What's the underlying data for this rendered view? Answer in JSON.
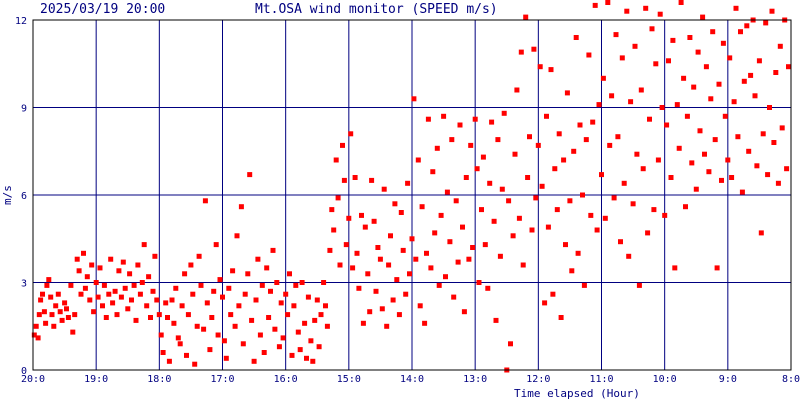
{
  "header": {
    "timestamp": "2025/03/19 20:00",
    "title": "Mt.OSA wind monitor (SPEED m/s)"
  },
  "colors": {
    "background": "#ffffff",
    "plot_border": "#000000",
    "grid": "#000080",
    "text": "#000080",
    "points": "#ff0000"
  },
  "chart_data": {
    "type": "scatter",
    "title": "Mt.OSA wind monitor (SPEED m/s)",
    "xlabel": "Time elapsed (Hour)",
    "ylabel": "m/s",
    "xlim": [
      0,
      12
    ],
    "ylim": [
      0,
      12
    ],
    "x_reversed": true,
    "grid": true,
    "x_ticks": [
      {
        "value": 0,
        "label": "20:0"
      },
      {
        "value": 1,
        "label": "19:0"
      },
      {
        "value": 2,
        "label": "18:0"
      },
      {
        "value": 3,
        "label": "17:0"
      },
      {
        "value": 4,
        "label": "16:0"
      },
      {
        "value": 5,
        "label": "15:0"
      },
      {
        "value": 6,
        "label": "14:0"
      },
      {
        "value": 7,
        "label": "13:0"
      },
      {
        "value": 8,
        "label": "12:0"
      },
      {
        "value": 9,
        "label": "11:0"
      },
      {
        "value": 10,
        "label": "10:0"
      },
      {
        "value": 11,
        "label": "9:0"
      },
      {
        "value": 12,
        "label": "8:0"
      }
    ],
    "y_ticks": [
      {
        "value": 0,
        "label": "0"
      },
      {
        "value": 3,
        "label": "3"
      },
      {
        "value": 6,
        "label": "6"
      },
      {
        "value": 9,
        "label": "9"
      },
      {
        "value": 12,
        "label": "12"
      }
    ],
    "points": [
      [
        0.02,
        1.2
      ],
      [
        0.05,
        1.5
      ],
      [
        0.08,
        1.1
      ],
      [
        0.1,
        1.9
      ],
      [
        0.12,
        2.4
      ],
      [
        0.15,
        2.6
      ],
      [
        0.18,
        2.0
      ],
      [
        0.2,
        1.6
      ],
      [
        0.22,
        2.9
      ],
      [
        0.25,
        3.1
      ],
      [
        0.28,
        2.5
      ],
      [
        0.3,
        1.9
      ],
      [
        0.33,
        1.5
      ],
      [
        0.36,
        2.2
      ],
      [
        0.4,
        2.6
      ],
      [
        0.43,
        2.0
      ],
      [
        0.46,
        1.7
      ],
      [
        0.5,
        2.3
      ],
      [
        0.53,
        2.1
      ],
      [
        0.56,
        1.8
      ],
      [
        0.6,
        2.9
      ],
      [
        0.63,
        1.3
      ],
      [
        0.66,
        1.9
      ],
      [
        0.7,
        3.8
      ],
      [
        0.73,
        3.4
      ],
      [
        0.76,
        2.6
      ],
      [
        0.8,
        4.0
      ],
      [
        0.83,
        2.8
      ],
      [
        0.86,
        3.2
      ],
      [
        0.9,
        2.4
      ],
      [
        0.93,
        3.6
      ],
      [
        0.96,
        2.0
      ],
      [
        1.0,
        3.0
      ],
      [
        1.03,
        2.5
      ],
      [
        1.06,
        3.5
      ],
      [
        1.1,
        2.2
      ],
      [
        1.13,
        2.9
      ],
      [
        1.16,
        1.8
      ],
      [
        1.2,
        2.6
      ],
      [
        1.23,
        3.8
      ],
      [
        1.26,
        2.3
      ],
      [
        1.3,
        2.7
      ],
      [
        1.33,
        1.9
      ],
      [
        1.36,
        3.4
      ],
      [
        1.4,
        2.5
      ],
      [
        1.43,
        3.7
      ],
      [
        1.46,
        2.8
      ],
      [
        1.5,
        2.1
      ],
      [
        1.53,
        3.3
      ],
      [
        1.56,
        2.4
      ],
      [
        1.6,
        2.9
      ],
      [
        1.63,
        1.7
      ],
      [
        1.66,
        3.6
      ],
      [
        1.7,
        2.6
      ],
      [
        1.73,
        3.0
      ],
      [
        1.76,
        4.3
      ],
      [
        1.8,
        2.2
      ],
      [
        1.83,
        3.2
      ],
      [
        1.86,
        1.8
      ],
      [
        1.9,
        2.7
      ],
      [
        1.93,
        3.9
      ],
      [
        1.96,
        2.4
      ],
      [
        2.0,
        1.9
      ],
      [
        2.03,
        1.2
      ],
      [
        2.06,
        0.6
      ],
      [
        2.1,
        2.3
      ],
      [
        2.13,
        1.8
      ],
      [
        2.16,
        0.3
      ],
      [
        2.2,
        2.4
      ],
      [
        2.23,
        1.6
      ],
      [
        2.26,
        2.8
      ],
      [
        2.3,
        1.1
      ],
      [
        2.33,
        0.9
      ],
      [
        2.36,
        2.2
      ],
      [
        2.4,
        3.3
      ],
      [
        2.43,
        0.5
      ],
      [
        2.46,
        1.9
      ],
      [
        2.5,
        3.6
      ],
      [
        2.53,
        2.6
      ],
      [
        2.56,
        0.2
      ],
      [
        2.6,
        1.5
      ],
      [
        2.63,
        3.9
      ],
      [
        2.66,
        2.9
      ],
      [
        2.7,
        1.4
      ],
      [
        2.73,
        5.8
      ],
      [
        2.76,
        2.3
      ],
      [
        2.8,
        0.7
      ],
      [
        2.83,
        1.8
      ],
      [
        2.86,
        2.7
      ],
      [
        2.9,
        4.3
      ],
      [
        2.93,
        1.2
      ],
      [
        2.96,
        3.1
      ],
      [
        3.0,
        2.5
      ],
      [
        3.03,
        1.0
      ],
      [
        3.06,
        0.4
      ],
      [
        3.1,
        2.8
      ],
      [
        3.13,
        1.9
      ],
      [
        3.16,
        3.4
      ],
      [
        3.2,
        1.5
      ],
      [
        3.23,
        4.6
      ],
      [
        3.26,
        2.2
      ],
      [
        3.3,
        5.6
      ],
      [
        3.33,
        0.9
      ],
      [
        3.36,
        2.6
      ],
      [
        3.4,
        3.3
      ],
      [
        3.43,
        6.7
      ],
      [
        3.46,
        1.7
      ],
      [
        3.5,
        0.3
      ],
      [
        3.53,
        2.4
      ],
      [
        3.56,
        3.8
      ],
      [
        3.6,
        1.2
      ],
      [
        3.63,
        2.9
      ],
      [
        3.66,
        0.6
      ],
      [
        3.7,
        3.5
      ],
      [
        3.73,
        1.8
      ],
      [
        3.76,
        2.7
      ],
      [
        3.8,
        4.1
      ],
      [
        3.83,
        1.4
      ],
      [
        3.86,
        3.0
      ],
      [
        3.9,
        0.8
      ],
      [
        3.93,
        2.3
      ],
      [
        3.96,
        1.1
      ],
      [
        4.0,
        2.6
      ],
      [
        4.03,
        1.9
      ],
      [
        4.06,
        3.3
      ],
      [
        4.1,
        0.5
      ],
      [
        4.13,
        2.2
      ],
      [
        4.16,
        2.9
      ],
      [
        4.2,
        1.3
      ],
      [
        4.23,
        0.7
      ],
      [
        4.26,
        3.0
      ],
      [
        4.3,
        1.6
      ],
      [
        4.33,
        0.4
      ],
      [
        4.36,
        2.5
      ],
      [
        4.4,
        1.0
      ],
      [
        4.43,
        0.3
      ],
      [
        4.46,
        1.7
      ],
      [
        4.5,
        2.4
      ],
      [
        4.53,
        0.8
      ],
      [
        4.56,
        1.9
      ],
      [
        4.6,
        3.0
      ],
      [
        4.63,
        2.2
      ],
      [
        4.66,
        1.5
      ],
      [
        4.7,
        4.1
      ],
      [
        4.73,
        5.5
      ],
      [
        4.76,
        4.8
      ],
      [
        4.8,
        7.2
      ],
      [
        4.83,
        5.9
      ],
      [
        4.86,
        3.6
      ],
      [
        4.9,
        7.7
      ],
      [
        4.93,
        6.5
      ],
      [
        4.96,
        4.3
      ],
      [
        5.0,
        5.2
      ],
      [
        5.03,
        8.1
      ],
      [
        5.06,
        3.5
      ],
      [
        5.1,
        6.6
      ],
      [
        5.13,
        4.0
      ],
      [
        5.16,
        2.8
      ],
      [
        5.2,
        5.3
      ],
      [
        5.23,
        1.6
      ],
      [
        5.26,
        4.9
      ],
      [
        5.3,
        3.3
      ],
      [
        5.33,
        2.0
      ],
      [
        5.36,
        6.5
      ],
      [
        5.4,
        5.1
      ],
      [
        5.43,
        2.7
      ],
      [
        5.46,
        4.2
      ],
      [
        5.5,
        3.8
      ],
      [
        5.53,
        2.1
      ],
      [
        5.56,
        6.2
      ],
      [
        5.6,
        1.5
      ],
      [
        5.63,
        3.6
      ],
      [
        5.66,
        4.6
      ],
      [
        5.7,
        2.4
      ],
      [
        5.73,
        5.7
      ],
      [
        5.76,
        3.1
      ],
      [
        5.8,
        1.9
      ],
      [
        5.83,
        5.4
      ],
      [
        5.86,
        4.1
      ],
      [
        5.9,
        2.6
      ],
      [
        5.93,
        6.4
      ],
      [
        5.96,
        3.3
      ],
      [
        6.0,
        4.5
      ],
      [
        6.03,
        9.3
      ],
      [
        6.06,
        3.8
      ],
      [
        6.1,
        7.2
      ],
      [
        6.13,
        2.2
      ],
      [
        6.16,
        5.6
      ],
      [
        6.2,
        1.6
      ],
      [
        6.23,
        4.0
      ],
      [
        6.26,
        8.6
      ],
      [
        6.3,
        3.5
      ],
      [
        6.33,
        6.8
      ],
      [
        6.36,
        4.7
      ],
      [
        6.4,
        7.6
      ],
      [
        6.43,
        2.9
      ],
      [
        6.46,
        5.3
      ],
      [
        6.5,
        8.7
      ],
      [
        6.53,
        3.2
      ],
      [
        6.56,
        6.1
      ],
      [
        6.6,
        4.4
      ],
      [
        6.63,
        7.9
      ],
      [
        6.66,
        2.5
      ],
      [
        6.7,
        5.8
      ],
      [
        6.73,
        3.7
      ],
      [
        6.76,
        8.4
      ],
      [
        6.8,
        4.9
      ],
      [
        6.83,
        2.0
      ],
      [
        6.86,
        6.6
      ],
      [
        6.9,
        3.8
      ],
      [
        6.93,
        7.7
      ],
      [
        6.96,
        4.2
      ],
      [
        7.0,
        8.6
      ],
      [
        7.03,
        6.9
      ],
      [
        7.06,
        3.0
      ],
      [
        7.1,
        5.5
      ],
      [
        7.13,
        7.3
      ],
      [
        7.16,
        4.3
      ],
      [
        7.2,
        2.8
      ],
      [
        7.23,
        6.4
      ],
      [
        7.26,
        8.5
      ],
      [
        7.3,
        5.1
      ],
      [
        7.33,
        1.7
      ],
      [
        7.36,
        7.9
      ],
      [
        7.4,
        3.9
      ],
      [
        7.43,
        6.2
      ],
      [
        7.46,
        8.8
      ],
      [
        7.5,
        0.0
      ],
      [
        7.53,
        5.8
      ],
      [
        7.56,
        0.9
      ],
      [
        7.6,
        4.6
      ],
      [
        7.63,
        7.4
      ],
      [
        7.66,
        9.6
      ],
      [
        7.7,
        5.2
      ],
      [
        7.73,
        10.9
      ],
      [
        7.76,
        3.6
      ],
      [
        7.8,
        12.1
      ],
      [
        7.83,
        6.6
      ],
      [
        7.86,
        8.0
      ],
      [
        7.9,
        4.8
      ],
      [
        7.93,
        11.0
      ],
      [
        7.96,
        5.9
      ],
      [
        8.0,
        7.7
      ],
      [
        8.03,
        10.4
      ],
      [
        8.06,
        6.3
      ],
      [
        8.1,
        2.3
      ],
      [
        8.13,
        8.7
      ],
      [
        8.16,
        4.9
      ],
      [
        8.2,
        10.3
      ],
      [
        8.23,
        2.6
      ],
      [
        8.26,
        6.9
      ],
      [
        8.3,
        5.5
      ],
      [
        8.33,
        8.1
      ],
      [
        8.36,
        1.8
      ],
      [
        8.4,
        7.2
      ],
      [
        8.43,
        4.3
      ],
      [
        8.46,
        9.5
      ],
      [
        8.5,
        5.8
      ],
      [
        8.53,
        3.4
      ],
      [
        8.56,
        7.5
      ],
      [
        8.6,
        11.4
      ],
      [
        8.63,
        4.0
      ],
      [
        8.66,
        8.4
      ],
      [
        8.7,
        6.0
      ],
      [
        8.73,
        2.9
      ],
      [
        8.76,
        7.9
      ],
      [
        8.8,
        10.8
      ],
      [
        8.83,
        5.3
      ],
      [
        8.86,
        8.5
      ],
      [
        8.9,
        12.5
      ],
      [
        8.93,
        4.8
      ],
      [
        8.96,
        9.1
      ],
      [
        9.0,
        6.7
      ],
      [
        9.03,
        10.0
      ],
      [
        9.06,
        5.2
      ],
      [
        9.1,
        12.6
      ],
      [
        9.13,
        7.7
      ],
      [
        9.16,
        9.4
      ],
      [
        9.2,
        5.9
      ],
      [
        9.23,
        11.5
      ],
      [
        9.26,
        8.0
      ],
      [
        9.3,
        4.4
      ],
      [
        9.33,
        10.7
      ],
      [
        9.36,
        6.4
      ],
      [
        9.4,
        12.3
      ],
      [
        9.43,
        3.9
      ],
      [
        9.46,
        9.2
      ],
      [
        9.5,
        5.7
      ],
      [
        9.53,
        11.1
      ],
      [
        9.56,
        7.4
      ],
      [
        9.6,
        2.9
      ],
      [
        9.63,
        9.6
      ],
      [
        9.66,
        6.9
      ],
      [
        9.7,
        12.4
      ],
      [
        9.73,
        4.7
      ],
      [
        9.76,
        8.6
      ],
      [
        9.8,
        11.7
      ],
      [
        9.83,
        5.5
      ],
      [
        9.86,
        10.5
      ],
      [
        9.9,
        7.2
      ],
      [
        9.93,
        12.2
      ],
      [
        9.96,
        9.0
      ],
      [
        10.0,
        5.3
      ],
      [
        10.03,
        8.4
      ],
      [
        10.06,
        10.6
      ],
      [
        10.1,
        6.6
      ],
      [
        10.13,
        11.3
      ],
      [
        10.16,
        3.5
      ],
      [
        10.2,
        9.1
      ],
      [
        10.23,
        7.6
      ],
      [
        10.26,
        12.6
      ],
      [
        10.3,
        10.0
      ],
      [
        10.33,
        5.6
      ],
      [
        10.36,
        8.7
      ],
      [
        10.4,
        11.4
      ],
      [
        10.43,
        7.1
      ],
      [
        10.46,
        9.7
      ],
      [
        10.5,
        6.2
      ],
      [
        10.53,
        10.9
      ],
      [
        10.56,
        8.2
      ],
      [
        10.6,
        12.1
      ],
      [
        10.63,
        7.4
      ],
      [
        10.66,
        10.4
      ],
      [
        10.7,
        6.8
      ],
      [
        10.73,
        9.3
      ],
      [
        10.76,
        11.6
      ],
      [
        10.8,
        7.9
      ],
      [
        10.83,
        3.5
      ],
      [
        10.86,
        9.8
      ],
      [
        10.9,
        6.5
      ],
      [
        10.93,
        11.2
      ],
      [
        10.96,
        8.7
      ],
      [
        11.0,
        7.2
      ],
      [
        11.03,
        10.7
      ],
      [
        11.06,
        6.6
      ],
      [
        11.1,
        9.2
      ],
      [
        11.13,
        12.4
      ],
      [
        11.16,
        8.0
      ],
      [
        11.2,
        11.6
      ],
      [
        11.23,
        6.1
      ],
      [
        11.26,
        9.9
      ],
      [
        11.3,
        11.8
      ],
      [
        11.33,
        7.5
      ],
      [
        11.36,
        10.1
      ],
      [
        11.4,
        12.0
      ],
      [
        11.43,
        9.4
      ],
      [
        11.46,
        7.0
      ],
      [
        11.5,
        10.6
      ],
      [
        11.53,
        4.7
      ],
      [
        11.56,
        8.1
      ],
      [
        11.6,
        11.9
      ],
      [
        11.63,
        6.7
      ],
      [
        11.66,
        9.0
      ],
      [
        11.7,
        12.3
      ],
      [
        11.73,
        7.8
      ],
      [
        11.76,
        10.2
      ],
      [
        11.8,
        6.4
      ],
      [
        11.83,
        11.1
      ],
      [
        11.86,
        8.3
      ],
      [
        11.9,
        12.0
      ],
      [
        11.93,
        6.9
      ],
      [
        11.96,
        10.4
      ]
    ]
  }
}
